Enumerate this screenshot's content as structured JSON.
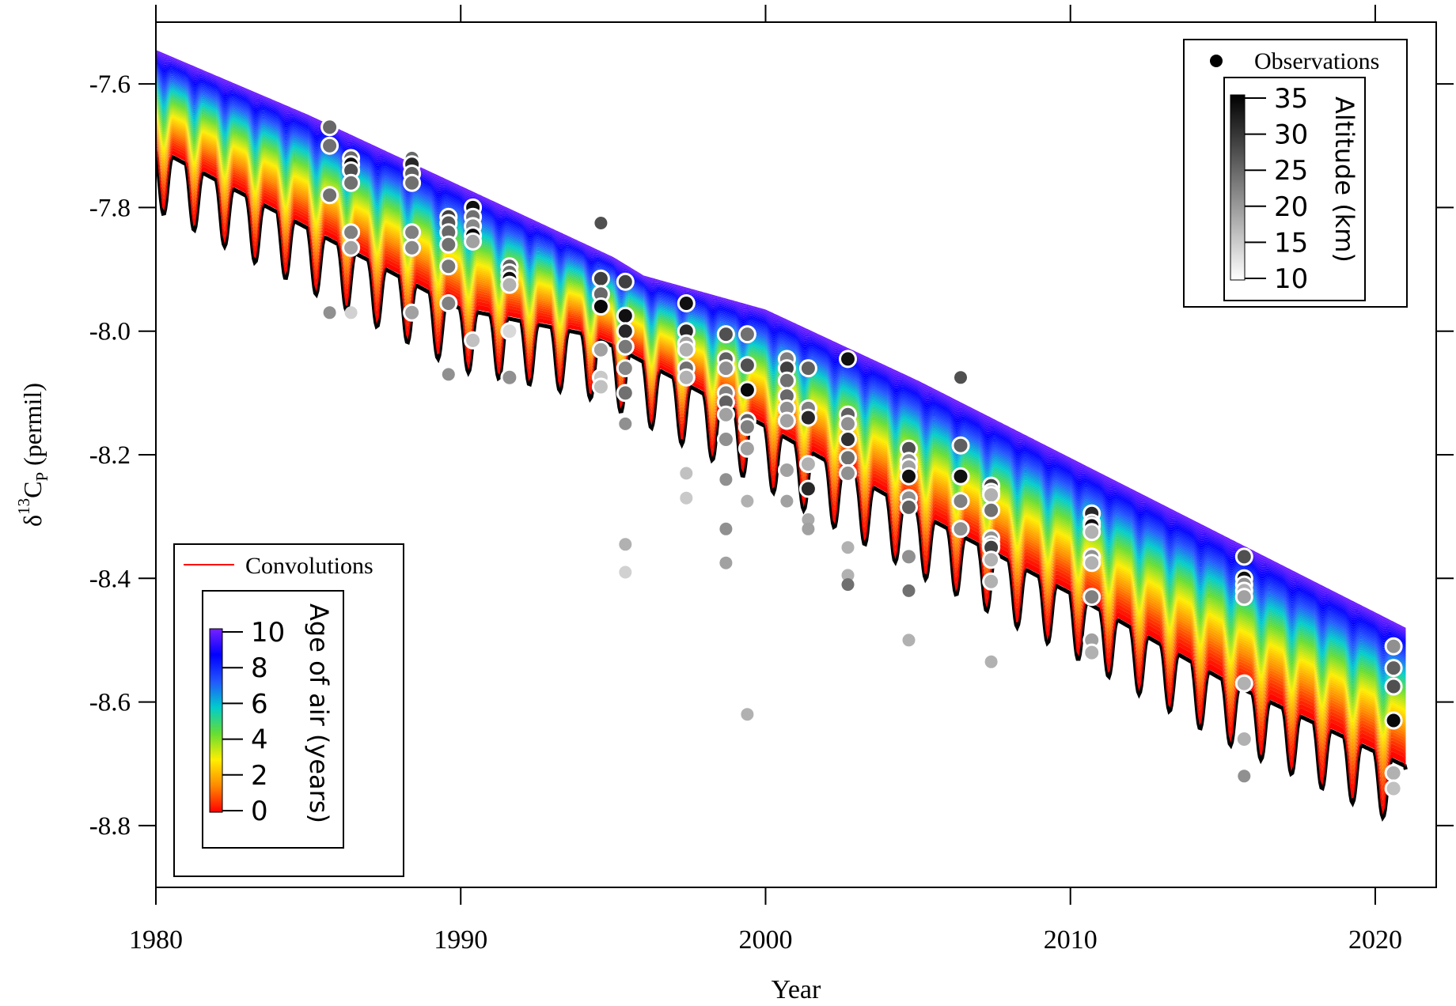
{
  "chart_data": {
    "type": "scatter",
    "title": "",
    "xlabel": "Year",
    "ylabel": {
      "main": "δ",
      "sup": "13",
      "sym": "C",
      "sub": "P",
      "tail": " (permil)"
    },
    "xlim": [
      1980,
      2022
    ],
    "ylim": [
      -8.9,
      -7.5
    ],
    "x_ticks": [
      1980,
      1990,
      2000,
      2010,
      2020
    ],
    "x_tick_labels": [
      "1980",
      "1990",
      "2000",
      "2010",
      "2020"
    ],
    "y_ticks": [
      -7.6,
      -7.8,
      -8.0,
      -8.2,
      -8.4,
      -8.6,
      -8.8
    ],
    "y_tick_labels": [
      "-7.6",
      "-7.8",
      "-8.0",
      "-8.2",
      "-8.4",
      "-8.6",
      "-8.8"
    ],
    "grid": false,
    "convolution_band": {
      "name": "Convolutions",
      "line_color": "#ff0000",
      "x_range": [
        1980,
        2021
      ],
      "upper_edge": [
        [
          1980,
          -7.545
        ],
        [
          1985,
          -7.65
        ],
        [
          1990,
          -7.765
        ],
        [
          1995,
          -7.88
        ],
        [
          1996,
          -7.91
        ],
        [
          2000,
          -7.965
        ],
        [
          2005,
          -8.08
        ],
        [
          2010,
          -8.205
        ],
        [
          2015,
          -8.33
        ],
        [
          2021,
          -8.48
        ]
      ],
      "lower_trend": [
        [
          1980,
          -7.7
        ],
        [
          1985,
          -7.83
        ],
        [
          1990,
          -7.96
        ],
        [
          1994,
          -8.0
        ],
        [
          1995,
          -8.02
        ],
        [
          2000,
          -8.15
        ],
        [
          2005,
          -8.29
        ],
        [
          2010,
          -8.42
        ],
        [
          2015,
          -8.56
        ],
        [
          2021,
          -8.7
        ]
      ],
      "seasonal_amplitude": 0.1,
      "age_colorbar": {
        "label": "Age of air (years)",
        "ticks": [
          0,
          2,
          4,
          6,
          8,
          10
        ],
        "tick_labels": [
          "0",
          "2",
          "4",
          "6",
          "8",
          "10"
        ],
        "colors": [
          "#ff0000",
          "#ff8800",
          "#ffee00",
          "#66dd33",
          "#00cccc",
          "#2255ff",
          "#0000ff",
          "#7722ff"
        ]
      }
    },
    "observations": {
      "name": "Observations",
      "altitude_colorbar": {
        "label": "Altitude (km)",
        "ticks": [
          10,
          15,
          20,
          25,
          30,
          35
        ],
        "tick_labels": [
          "10",
          "15",
          "20",
          "25",
          "30",
          "35"
        ]
      },
      "points": [
        {
          "x": 1985.7,
          "y": -7.67,
          "alt": 25
        },
        {
          "x": 1985.7,
          "y": -7.7,
          "alt": 24
        },
        {
          "x": 1985.7,
          "y": -7.78,
          "alt": 24
        },
        {
          "x": 1985.7,
          "y": -7.97,
          "alt": 20
        },
        {
          "x": 1986.4,
          "y": -7.72,
          "alt": 25
        },
        {
          "x": 1986.4,
          "y": -7.73,
          "alt": 36
        },
        {
          "x": 1986.4,
          "y": -7.74,
          "alt": 28
        },
        {
          "x": 1986.4,
          "y": -7.76,
          "alt": 24
        },
        {
          "x": 1986.4,
          "y": -7.84,
          "alt": 22
        },
        {
          "x": 1986.4,
          "y": -7.865,
          "alt": 18
        },
        {
          "x": 1986.4,
          "y": -7.97,
          "alt": 12
        },
        {
          "x": 1988.4,
          "y": -7.72,
          "alt": 25
        },
        {
          "x": 1988.4,
          "y": -7.73,
          "alt": 33
        },
        {
          "x": 1988.4,
          "y": -7.745,
          "alt": 26
        },
        {
          "x": 1988.4,
          "y": -7.76,
          "alt": 24
        },
        {
          "x": 1988.4,
          "y": -7.84,
          "alt": 22
        },
        {
          "x": 1988.4,
          "y": -7.865,
          "alt": 21
        },
        {
          "x": 1988.4,
          "y": -7.97,
          "alt": 18
        },
        {
          "x": 1989.6,
          "y": -7.815,
          "alt": 30
        },
        {
          "x": 1989.6,
          "y": -7.825,
          "alt": 27
        },
        {
          "x": 1989.6,
          "y": -7.84,
          "alt": 25
        },
        {
          "x": 1989.6,
          "y": -7.86,
          "alt": 24
        },
        {
          "x": 1989.6,
          "y": -7.895,
          "alt": 23
        },
        {
          "x": 1989.6,
          "y": -7.955,
          "alt": 22
        },
        {
          "x": 1989.6,
          "y": -8.07,
          "alt": 20
        },
        {
          "x": 1990.4,
          "y": -7.8,
          "alt": 36
        },
        {
          "x": 1990.4,
          "y": -7.815,
          "alt": 24
        },
        {
          "x": 1990.4,
          "y": -7.83,
          "alt": 21
        },
        {
          "x": 1990.4,
          "y": -7.845,
          "alt": 37
        },
        {
          "x": 1990.4,
          "y": -7.855,
          "alt": 18
        },
        {
          "x": 1990.4,
          "y": -8.015,
          "alt": 14
        },
        {
          "x": 1991.6,
          "y": -7.895,
          "alt": 26
        },
        {
          "x": 1991.6,
          "y": -7.905,
          "alt": 24
        },
        {
          "x": 1991.6,
          "y": -7.915,
          "alt": 36
        },
        {
          "x": 1991.6,
          "y": -7.925,
          "alt": 16
        },
        {
          "x": 1991.6,
          "y": -8.0,
          "alt": 11
        },
        {
          "x": 1991.6,
          "y": -8.075,
          "alt": 20
        },
        {
          "x": 1994.6,
          "y": -7.825,
          "alt": 28
        },
        {
          "x": 1994.6,
          "y": -7.915,
          "alt": 30
        },
        {
          "x": 1994.6,
          "y": -7.94,
          "alt": 25
        },
        {
          "x": 1994.6,
          "y": -7.96,
          "alt": 37
        },
        {
          "x": 1994.6,
          "y": -8.03,
          "alt": 18
        },
        {
          "x": 1994.6,
          "y": -8.075,
          "alt": 13
        },
        {
          "x": 1994.6,
          "y": -8.09,
          "alt": 14
        },
        {
          "x": 1995.4,
          "y": -7.92,
          "alt": 30
        },
        {
          "x": 1995.4,
          "y": -7.975,
          "alt": 36
        },
        {
          "x": 1995.4,
          "y": -8.0,
          "alt": 33
        },
        {
          "x": 1995.4,
          "y": -8.025,
          "alt": 23
        },
        {
          "x": 1995.4,
          "y": -8.06,
          "alt": 21
        },
        {
          "x": 1995.4,
          "y": -8.1,
          "alt": 24
        },
        {
          "x": 1995.4,
          "y": -8.15,
          "alt": 20
        },
        {
          "x": 1995.4,
          "y": -8.345,
          "alt": 16
        },
        {
          "x": 1995.4,
          "y": -8.39,
          "alt": 12
        },
        {
          "x": 1997.4,
          "y": -7.955,
          "alt": 36
        },
        {
          "x": 1997.4,
          "y": -8.0,
          "alt": 33
        },
        {
          "x": 1997.4,
          "y": -8.02,
          "alt": 18
        },
        {
          "x": 1997.4,
          "y": -8.03,
          "alt": 16
        },
        {
          "x": 1997.4,
          "y": -8.06,
          "alt": 24
        },
        {
          "x": 1997.4,
          "y": -8.075,
          "alt": 16
        },
        {
          "x": 1997.4,
          "y": -8.23,
          "alt": 14
        },
        {
          "x": 1997.4,
          "y": -8.27,
          "alt": 13
        },
        {
          "x": 1998.7,
          "y": -8.005,
          "alt": 28
        },
        {
          "x": 1998.7,
          "y": -8.045,
          "alt": 26
        },
        {
          "x": 1998.7,
          "y": -8.06,
          "alt": 20
        },
        {
          "x": 1998.7,
          "y": -8.1,
          "alt": 22
        },
        {
          "x": 1998.7,
          "y": -8.115,
          "alt": 26
        },
        {
          "x": 1998.7,
          "y": -8.135,
          "alt": 18
        },
        {
          "x": 1998.7,
          "y": -8.175,
          "alt": 20
        },
        {
          "x": 1998.7,
          "y": -8.24,
          "alt": 20
        },
        {
          "x": 1998.7,
          "y": -8.32,
          "alt": 20
        },
        {
          "x": 1998.7,
          "y": -8.375,
          "alt": 18
        },
        {
          "x": 1999.4,
          "y": -8.005,
          "alt": 24
        },
        {
          "x": 1999.4,
          "y": -8.055,
          "alt": 28
        },
        {
          "x": 1999.4,
          "y": -8.095,
          "alt": 37
        },
        {
          "x": 1999.4,
          "y": -8.145,
          "alt": 26
        },
        {
          "x": 1999.4,
          "y": -8.155,
          "alt": 22
        },
        {
          "x": 1999.4,
          "y": -8.19,
          "alt": 18
        },
        {
          "x": 1999.4,
          "y": -8.275,
          "alt": 16
        },
        {
          "x": 1999.4,
          "y": -8.62,
          "alt": 16
        },
        {
          "x": 2000.7,
          "y": -8.045,
          "alt": 22
        },
        {
          "x": 2000.7,
          "y": -8.06,
          "alt": 30
        },
        {
          "x": 2000.7,
          "y": -8.08,
          "alt": 24
        },
        {
          "x": 2000.7,
          "y": -8.105,
          "alt": 25
        },
        {
          "x": 2000.7,
          "y": -8.125,
          "alt": 20
        },
        {
          "x": 2000.7,
          "y": -8.145,
          "alt": 18
        },
        {
          "x": 2000.7,
          "y": -8.225,
          "alt": 18
        },
        {
          "x": 2000.7,
          "y": -8.275,
          "alt": 18
        },
        {
          "x": 2001.4,
          "y": -8.06,
          "alt": 26
        },
        {
          "x": 2001.4,
          "y": -8.125,
          "alt": 22
        },
        {
          "x": 2001.4,
          "y": -8.14,
          "alt": 33
        },
        {
          "x": 2001.4,
          "y": -8.215,
          "alt": 16
        },
        {
          "x": 2001.4,
          "y": -8.255,
          "alt": 33
        },
        {
          "x": 2001.4,
          "y": -8.305,
          "alt": 17
        },
        {
          "x": 2001.4,
          "y": -8.32,
          "alt": 18
        },
        {
          "x": 2002.7,
          "y": -8.045,
          "alt": 36
        },
        {
          "x": 2002.7,
          "y": -8.135,
          "alt": 26
        },
        {
          "x": 2002.7,
          "y": -8.15,
          "alt": 20
        },
        {
          "x": 2002.7,
          "y": -8.175,
          "alt": 32
        },
        {
          "x": 2002.7,
          "y": -8.205,
          "alt": 24
        },
        {
          "x": 2002.7,
          "y": -8.23,
          "alt": 20
        },
        {
          "x": 2002.7,
          "y": -8.35,
          "alt": 16
        },
        {
          "x": 2002.7,
          "y": -8.395,
          "alt": 16
        },
        {
          "x": 2002.7,
          "y": -8.41,
          "alt": 24
        },
        {
          "x": 2004.7,
          "y": -8.19,
          "alt": 28
        },
        {
          "x": 2004.7,
          "y": -8.21,
          "alt": 20
        },
        {
          "x": 2004.7,
          "y": -8.22,
          "alt": 18
        },
        {
          "x": 2004.7,
          "y": -8.235,
          "alt": 36
        },
        {
          "x": 2004.7,
          "y": -8.27,
          "alt": 20
        },
        {
          "x": 2004.7,
          "y": -8.285,
          "alt": 26
        },
        {
          "x": 2004.7,
          "y": -8.365,
          "alt": 20
        },
        {
          "x": 2004.7,
          "y": -8.42,
          "alt": 24
        },
        {
          "x": 2004.7,
          "y": -8.5,
          "alt": 16
        },
        {
          "x": 2006.4,
          "y": -8.075,
          "alt": 28
        },
        {
          "x": 2006.4,
          "y": -8.185,
          "alt": 26
        },
        {
          "x": 2006.4,
          "y": -8.235,
          "alt": 36
        },
        {
          "x": 2006.4,
          "y": -8.275,
          "alt": 22
        },
        {
          "x": 2006.4,
          "y": -8.32,
          "alt": 20
        },
        {
          "x": 2007.4,
          "y": -8.25,
          "alt": 30
        },
        {
          "x": 2007.4,
          "y": -8.26,
          "alt": 18
        },
        {
          "x": 2007.4,
          "y": -8.265,
          "alt": 16
        },
        {
          "x": 2007.4,
          "y": -8.29,
          "alt": 24
        },
        {
          "x": 2007.4,
          "y": -8.335,
          "alt": 20
        },
        {
          "x": 2007.4,
          "y": -8.345,
          "alt": 22
        },
        {
          "x": 2007.4,
          "y": -8.35,
          "alt": 30
        },
        {
          "x": 2007.4,
          "y": -8.37,
          "alt": 16
        },
        {
          "x": 2007.4,
          "y": -8.405,
          "alt": 16
        },
        {
          "x": 2007.4,
          "y": -8.535,
          "alt": 16
        },
        {
          "x": 2010.7,
          "y": -8.295,
          "alt": 33
        },
        {
          "x": 2010.7,
          "y": -8.31,
          "alt": 22
        },
        {
          "x": 2010.7,
          "y": -8.315,
          "alt": 36
        },
        {
          "x": 2010.7,
          "y": -8.325,
          "alt": 16
        },
        {
          "x": 2010.7,
          "y": -8.365,
          "alt": 20
        },
        {
          "x": 2010.7,
          "y": -8.375,
          "alt": 16
        },
        {
          "x": 2010.7,
          "y": -8.43,
          "alt": 22
        },
        {
          "x": 2010.7,
          "y": -8.5,
          "alt": 18
        },
        {
          "x": 2010.7,
          "y": -8.52,
          "alt": 16
        },
        {
          "x": 2015.7,
          "y": -8.365,
          "alt": 28
        },
        {
          "x": 2015.7,
          "y": -8.4,
          "alt": 36
        },
        {
          "x": 2015.7,
          "y": -8.41,
          "alt": 20
        },
        {
          "x": 2015.7,
          "y": -8.42,
          "alt": 16
        },
        {
          "x": 2015.7,
          "y": -8.43,
          "alt": 18
        },
        {
          "x": 2015.7,
          "y": -8.57,
          "alt": 16
        },
        {
          "x": 2015.7,
          "y": -8.66,
          "alt": 16
        },
        {
          "x": 2015.7,
          "y": -8.72,
          "alt": 20
        },
        {
          "x": 2020.6,
          "y": -8.51,
          "alt": 20
        },
        {
          "x": 2020.6,
          "y": -8.545,
          "alt": 26
        },
        {
          "x": 2020.6,
          "y": -8.575,
          "alt": 28
        },
        {
          "x": 2020.6,
          "y": -8.63,
          "alt": 37
        },
        {
          "x": 2020.6,
          "y": -8.715,
          "alt": 16
        },
        {
          "x": 2020.6,
          "y": -8.74,
          "alt": 14
        }
      ]
    }
  }
}
